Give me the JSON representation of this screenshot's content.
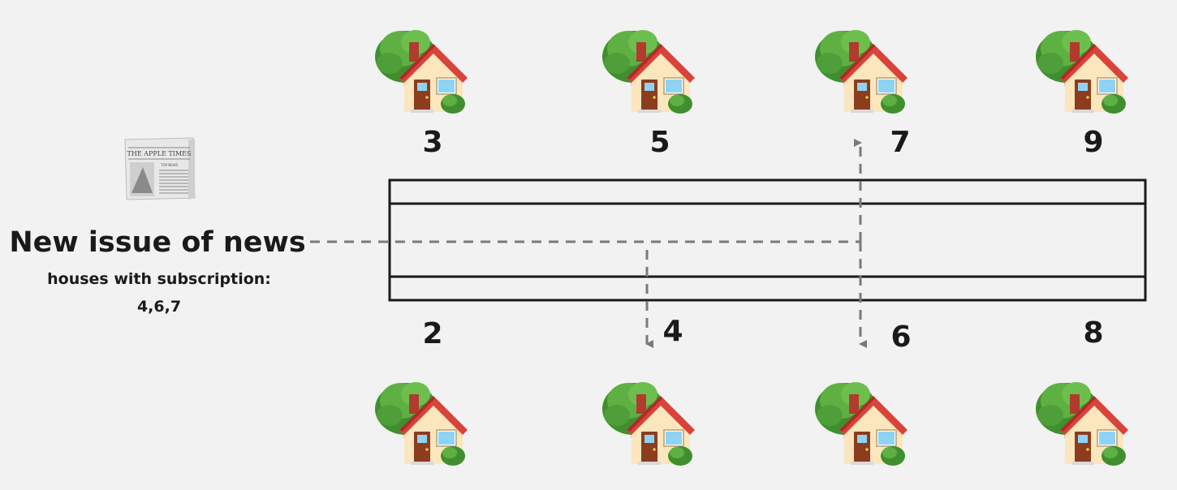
{
  "newspaper": {
    "masthead": "THE APPLE TIMES",
    "headline": "TOP NEWS",
    "icon": "newspaper-icon"
  },
  "caption": {
    "title": "New issue of news",
    "subtitle": "houses with subscription:",
    "houses": "4,6,7"
  },
  "houses_top": [
    "3",
    "5",
    "7",
    "9"
  ],
  "houses_bottom": [
    "2",
    "4",
    "6",
    "8"
  ],
  "house_icon": "house-with-garden-icon",
  "colors": {
    "background": "#f2f2f2",
    "road": "#1a1a1a",
    "route": "#7a7a7a",
    "text": "#1a1a1a"
  }
}
